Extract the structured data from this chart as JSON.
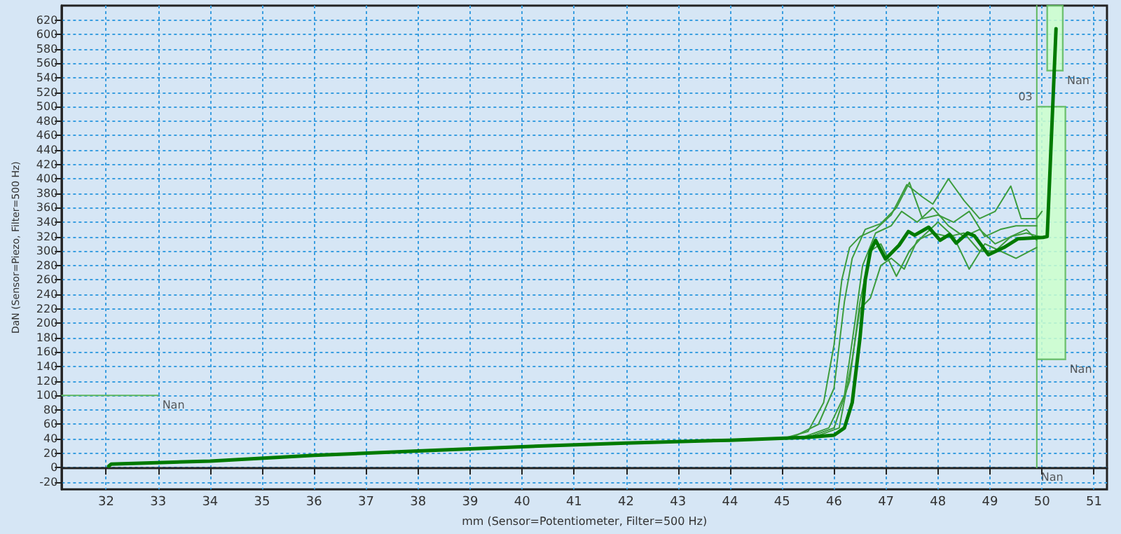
{
  "chart_data": {
    "type": "line",
    "xlabel": "mm (Sensor=Potentiometer, Filter=500 Hz)",
    "ylabel": "DaN (Sensor=Piezo, Filter=500 Hz)",
    "xlim": [
      31.15,
      51.25
    ],
    "xticks": [
      32,
      33,
      34,
      35,
      36,
      37,
      38,
      39,
      40,
      41,
      42,
      43,
      44,
      45,
      46,
      47,
      48,
      49,
      50,
      51
    ],
    "ylim": [
      -30,
      640
    ],
    "yticks": [
      -20,
      0,
      20,
      40,
      60,
      80,
      100,
      120,
      140,
      160,
      180,
      200,
      220,
      240,
      260,
      280,
      300,
      320,
      340,
      360,
      380,
      400,
      420,
      440,
      460,
      480,
      500,
      520,
      540,
      560,
      580,
      600,
      620
    ],
    "grid": true,
    "marker": "none",
    "line_style": "solid",
    "series": [
      {
        "color": "#5fb85f",
        "x": [
          31.15,
          33
        ],
        "values": [
          100,
          100
        ]
      },
      {
        "color": "#5fb85f",
        "x": [
          49.9,
          49.9
        ],
        "values": [
          0,
          640
        ]
      },
      {
        "color": "#5fb85f",
        "x": [
          49.9,
          50.45
        ],
        "values": [
          null,
          null
        ],
        "lower": [
          150,
          150
        ],
        "upper": [
          500,
          500
        ]
      },
      {
        "color": "#5fb85f",
        "x": [
          50.1,
          50.4
        ],
        "values": [
          null,
          null
        ],
        "lower": [
          550,
          550
        ],
        "upper": [
          640,
          640
        ]
      },
      {
        "color": "#3c9c3c",
        "x": [
          45.0,
          45.5,
          45.8,
          46.0,
          46.15,
          46.3,
          46.5,
          46.8,
          47.1,
          47.4,
          47.7,
          47.9,
          48.2,
          48.5,
          48.8,
          49.1,
          49.4,
          49.6,
          49.9,
          50.0
        ],
        "values": [
          40,
          50,
          90,
          170,
          260,
          305,
          320,
          330,
          350,
          392,
          375,
          365,
          400,
          370,
          345,
          355,
          390,
          345,
          345,
          355
        ]
      },
      {
        "color": "#3c9c3c",
        "x": [
          45.2,
          45.7,
          46.0,
          46.2,
          46.35,
          46.6,
          46.9,
          47.2,
          47.45,
          47.7,
          48.0,
          48.3,
          48.6,
          48.9,
          49.2,
          49.5,
          49.9
        ],
        "values": [
          42,
          60,
          110,
          230,
          290,
          330,
          338,
          360,
          395,
          345,
          350,
          340,
          355,
          320,
          330,
          335,
          335
        ]
      },
      {
        "color": "#3c9c3c",
        "x": [
          45.4,
          45.9,
          46.2,
          46.4,
          46.55,
          46.8,
          47.1,
          47.3,
          47.6,
          47.9,
          48.2,
          48.5,
          48.8,
          49.1,
          49.4,
          49.7,
          49.95
        ],
        "values": [
          42,
          55,
          100,
          200,
          280,
          325,
          335,
          355,
          340,
          360,
          335,
          320,
          330,
          310,
          320,
          325,
          320
        ]
      },
      {
        "color": "#3c9c3c",
        "x": [
          45.5,
          46.0,
          46.3,
          46.5,
          46.7,
          46.9,
          47.2,
          47.45,
          47.7,
          48.0,
          48.3,
          48.6,
          48.9,
          49.2,
          49.5,
          49.9
        ],
        "values": [
          42,
          55,
          120,
          230,
          300,
          310,
          265,
          300,
          320,
          340,
          320,
          275,
          310,
          300,
          290,
          305
        ]
      },
      {
        "color": "#3c9c3c",
        "x": [
          45.6,
          46.1,
          46.35,
          46.5,
          46.7,
          46.9,
          47.1,
          47.35,
          47.6,
          47.9,
          48.2,
          48.5,
          48.8,
          49.1,
          49.4,
          49.7,
          49.9
        ],
        "values": [
          42,
          55,
          150,
          220,
          235,
          280,
          290,
          275,
          315,
          325,
          320,
          325,
          300,
          300,
          320,
          330,
          315
        ]
      },
      {
        "color": "#007a00",
        "x": [
          32.05,
          32.1,
          34,
          36,
          38,
          40,
          42,
          44,
          45.5,
          46.0,
          46.2,
          46.35,
          46.5,
          46.6,
          46.7,
          46.8,
          46.99,
          47.25,
          47.43,
          47.55,
          47.82,
          48.04,
          48.22,
          48.35,
          48.57,
          48.7,
          48.97,
          49.27,
          49.54,
          50.02,
          50.1,
          50.27
        ],
        "values": [
          2,
          5,
          9,
          17,
          23,
          29,
          34,
          38,
          42,
          45,
          55,
          90,
          180,
          260,
          300,
          315,
          289,
          308,
          327,
          322,
          333,
          315,
          323,
          311,
          325,
          321,
          295,
          305,
          317,
          319,
          320,
          608
        ]
      }
    ],
    "annotations": [
      {
        "text": "Nan",
        "x": 33,
        "y": 100
      },
      {
        "text": "Nan",
        "x": 49.9,
        "y": 0
      },
      {
        "text": "Nan",
        "x": 50.45,
        "y": 150
      },
      {
        "text": "Nan",
        "x": 50.4,
        "y": 550
      },
      {
        "text": "03",
        "x": 49.9,
        "y": 500
      }
    ]
  }
}
